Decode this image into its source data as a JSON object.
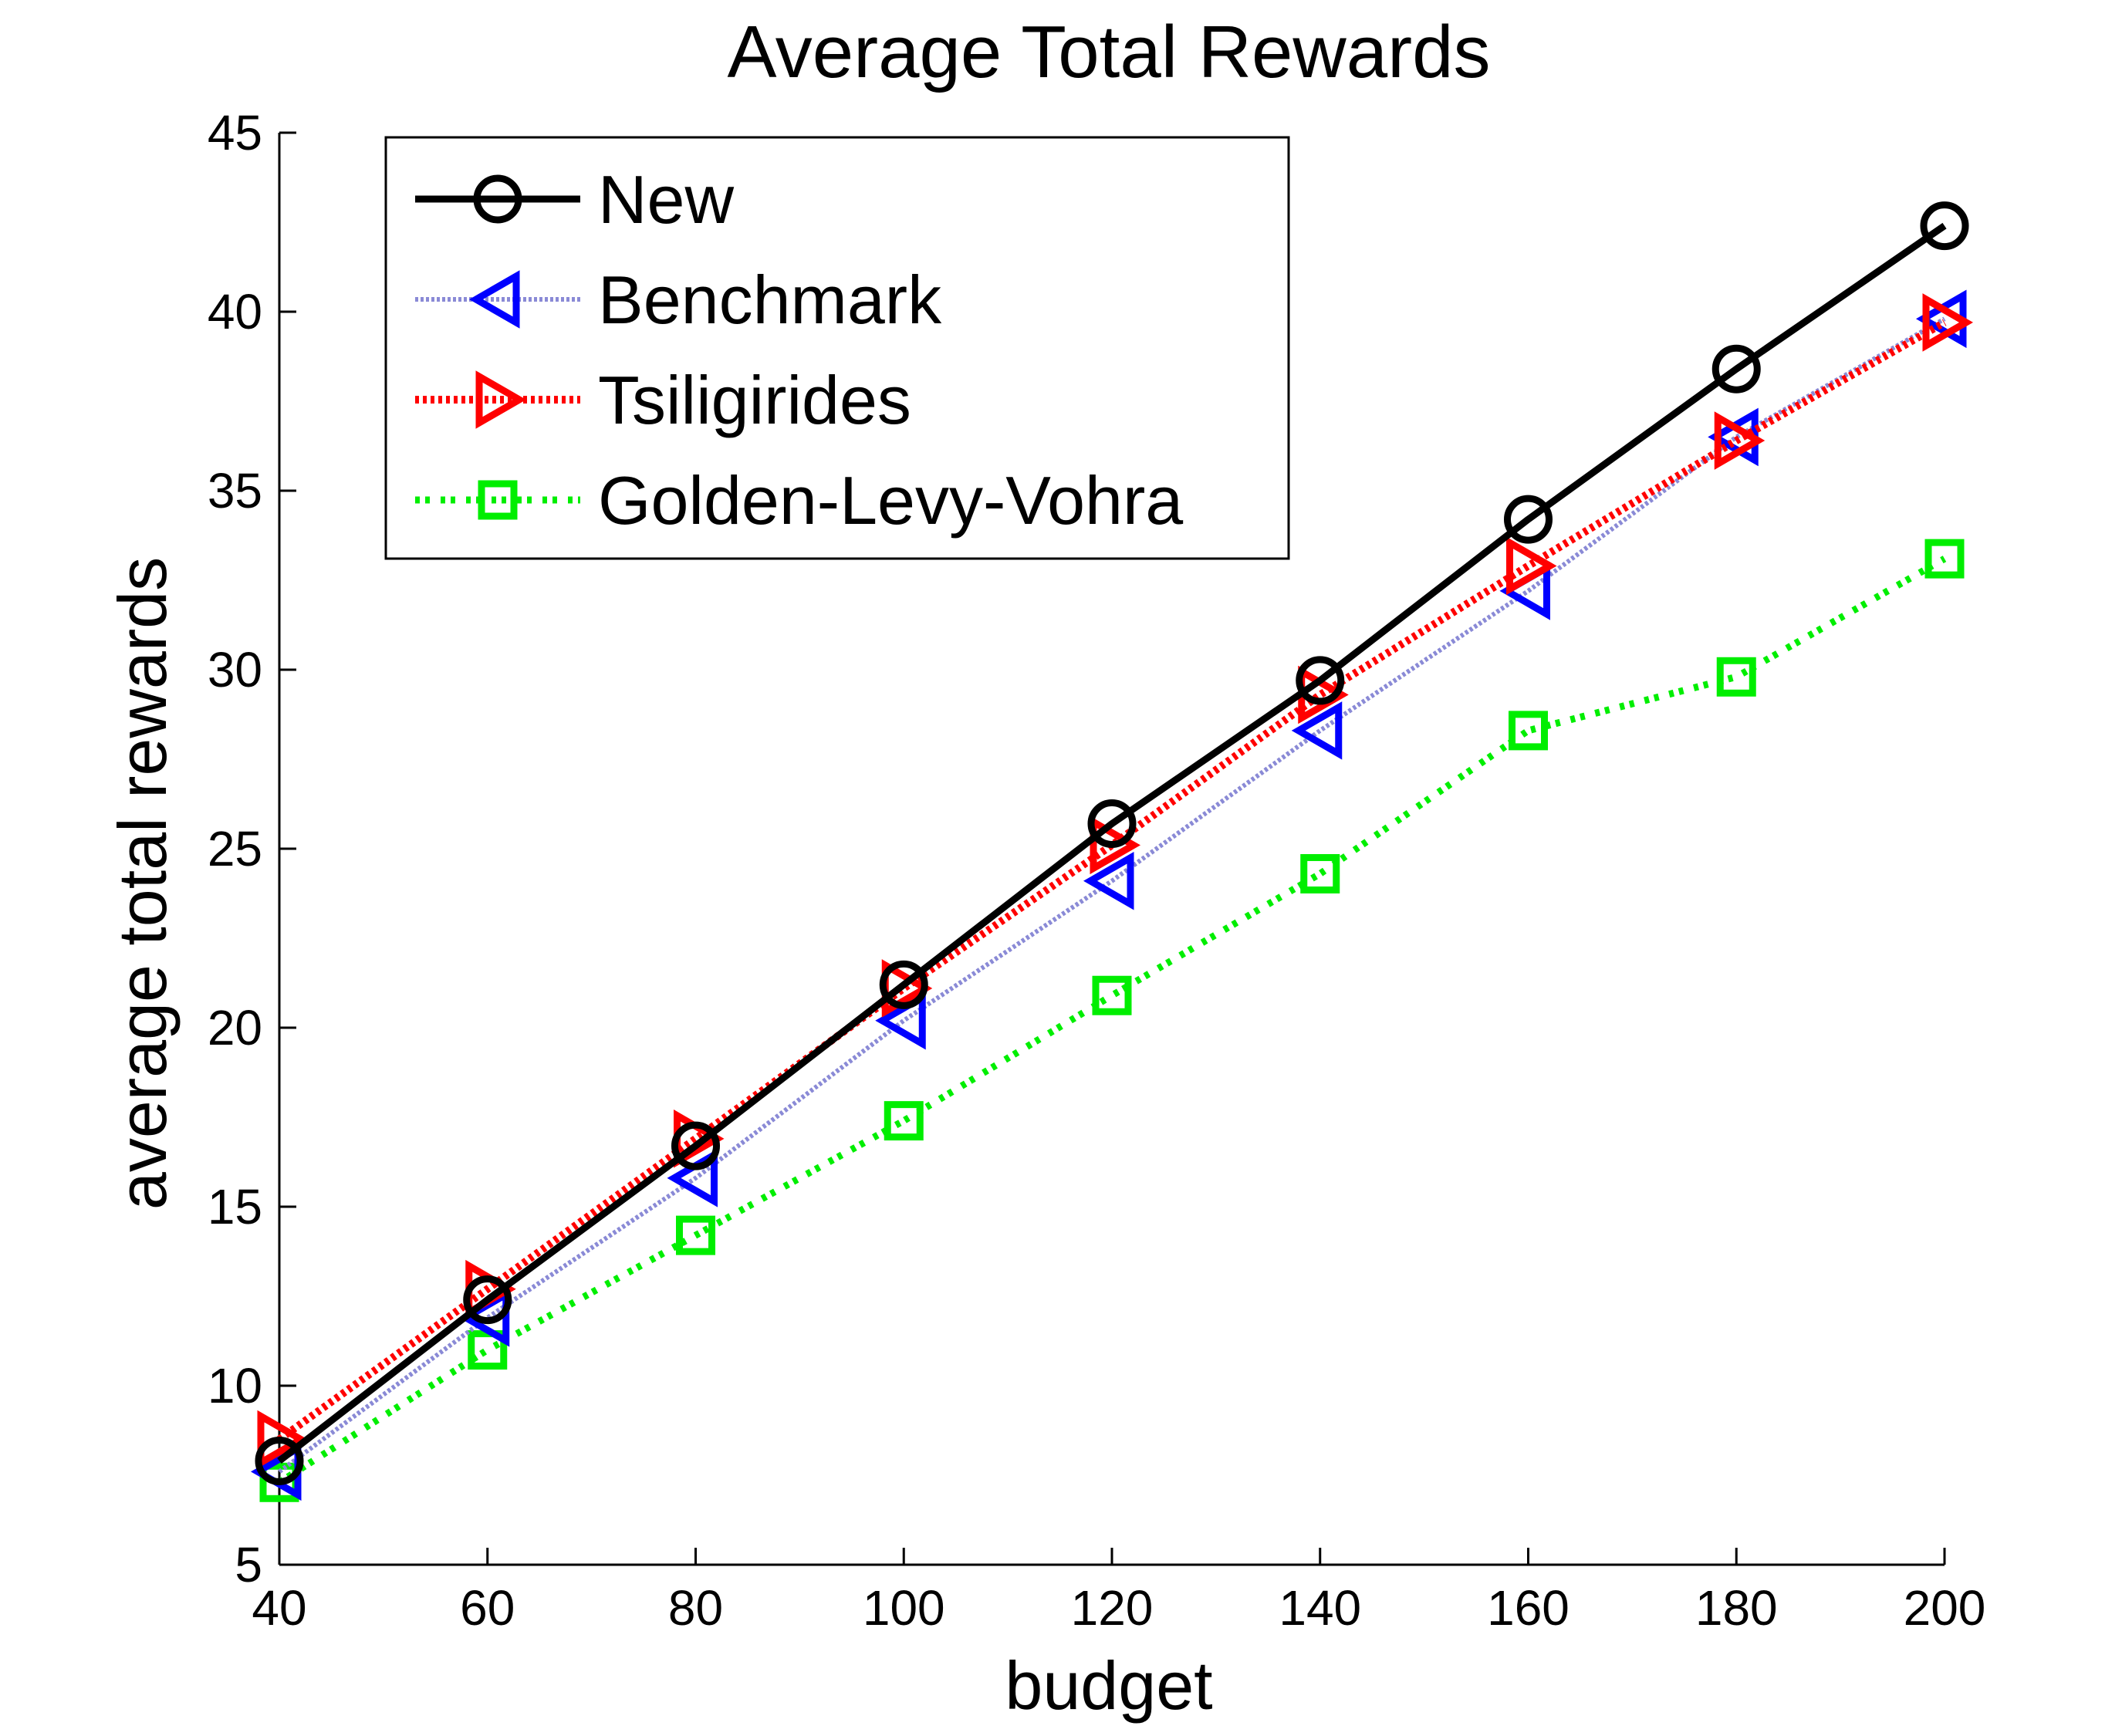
{
  "chart_data": {
    "type": "line",
    "title": "Average Total Rewards",
    "xlabel": "budget",
    "ylabel": "average total rewards",
    "xlim": [
      40,
      200
    ],
    "ylim": [
      5,
      45
    ],
    "x": [
      40,
      60,
      80,
      100,
      120,
      140,
      160,
      180,
      200
    ],
    "xticks": [
      40,
      60,
      80,
      100,
      120,
      140,
      160,
      180,
      200
    ],
    "yticks": [
      5,
      10,
      15,
      20,
      25,
      30,
      35,
      40,
      45
    ],
    "grid": false,
    "legend_position": "top-left",
    "series": [
      {
        "name": "New",
        "values": [
          7.9,
          12.4,
          16.7,
          21.2,
          25.7,
          29.7,
          34.2,
          38.4,
          42.4
        ],
        "color": "#000000",
        "line_style": "solid",
        "marker": "circle"
      },
      {
        "name": "Benchmark",
        "values": [
          7.6,
          11.9,
          15.8,
          20.2,
          24.1,
          28.3,
          32.2,
          36.5,
          39.8
        ],
        "color": "#0000ff",
        "line_color": "#8a8ad6",
        "line_style": "dotted",
        "marker": "triangle-left"
      },
      {
        "name": "Tsiligirides",
        "values": [
          8.5,
          12.7,
          16.9,
          21.1,
          25.1,
          29.3,
          32.9,
          36.4,
          39.7
        ],
        "color": "#ff0000",
        "line_style": "dotted",
        "marker": "triangle-right"
      },
      {
        "name": "Golden-Levy-Vohra",
        "values": [
          7.3,
          11.0,
          14.2,
          17.4,
          20.9,
          24.3,
          28.3,
          29.8,
          33.1
        ],
        "color": "#00ee00",
        "line_style": "dash-dot",
        "marker": "square"
      }
    ]
  }
}
